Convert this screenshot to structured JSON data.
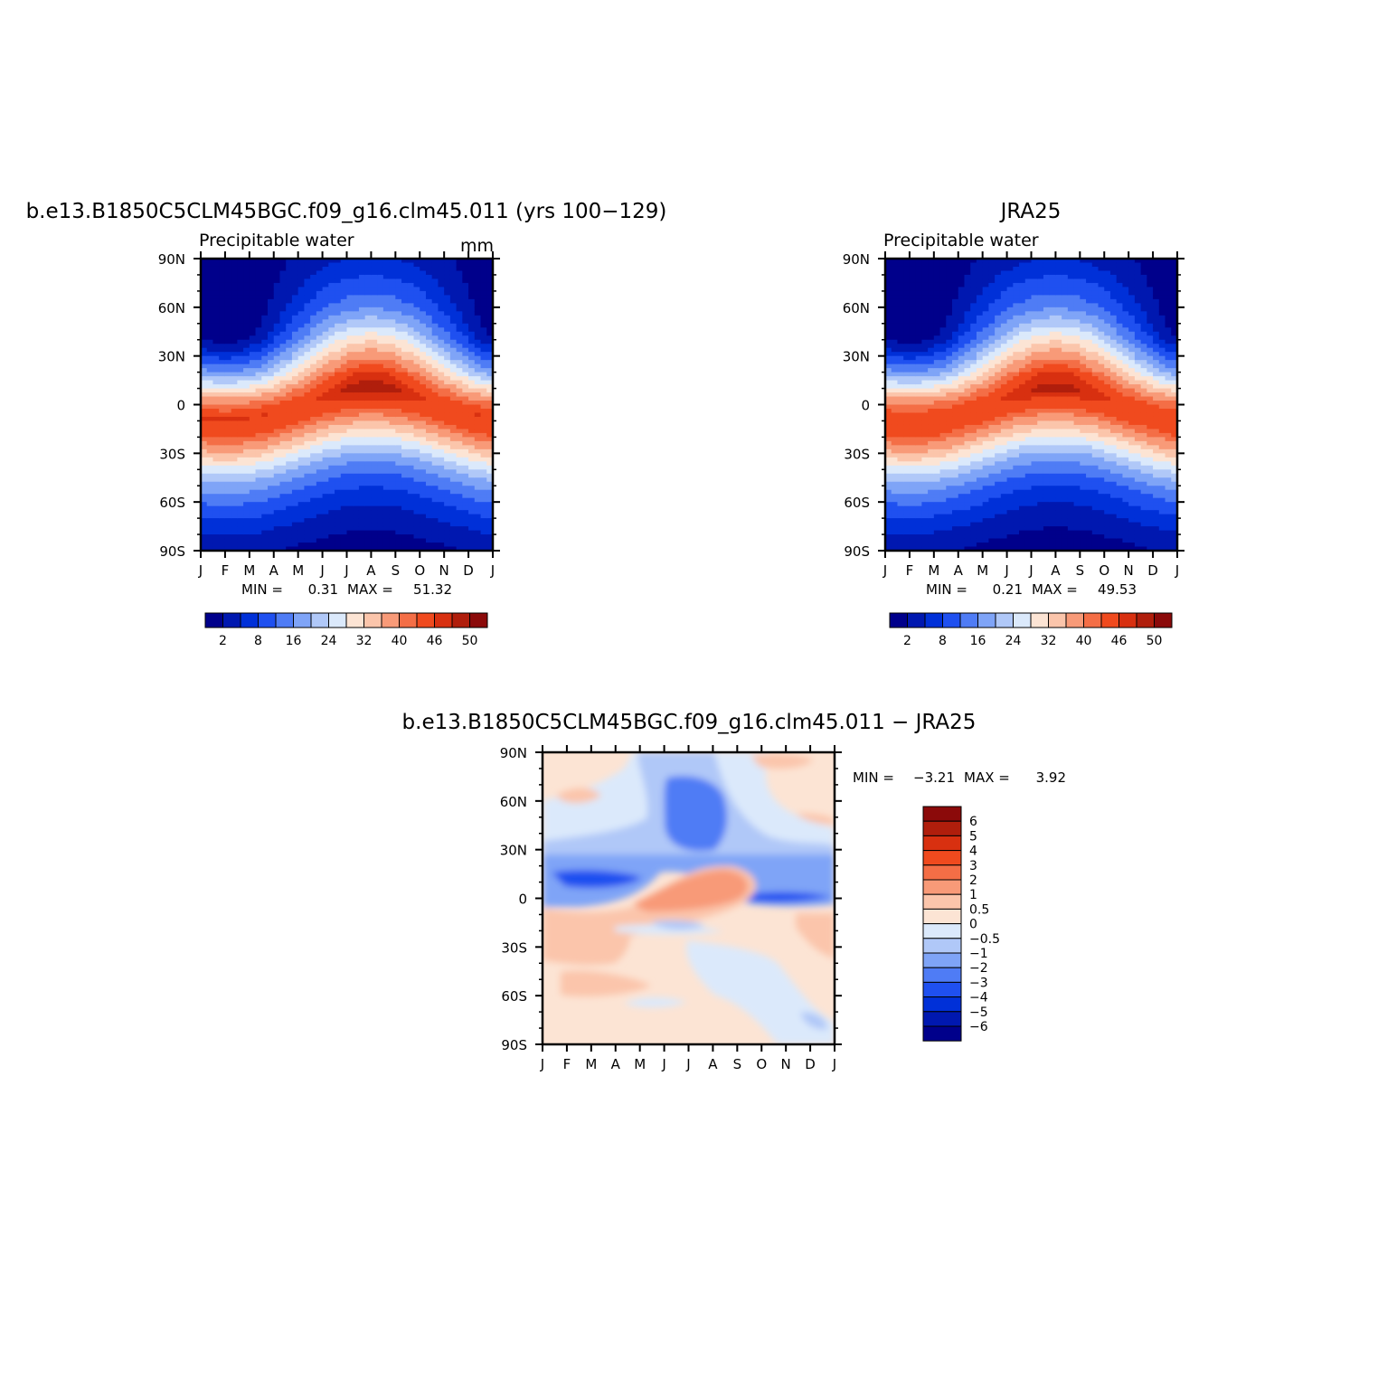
{
  "chart_data": [
    {
      "type": "heatmap",
      "title": "b.e13.B1850C5CLM45BGC.f09_g16.clm45.011 (yrs 100−129)",
      "subtitle": "Precipitable water",
      "units": "mm",
      "x_tick_labels": [
        "J",
        "F",
        "M",
        "A",
        "M",
        "J",
        "J",
        "A",
        "S",
        "O",
        "N",
        "D",
        "J"
      ],
      "y_tick_labels": [
        "90N",
        "60N",
        "30N",
        "0",
        "30S",
        "60S",
        "90S"
      ],
      "ylim": [
        -90,
        90
      ],
      "min_label": "MIN =",
      "min": "0.31",
      "max_label": "MAX =",
      "max": "51.32",
      "colorbar_labels": [
        "2",
        "8",
        "16",
        "24",
        "32",
        "40",
        "46",
        "50"
      ],
      "colors": [
        "#00008b",
        "#0018b0",
        "#0030d8",
        "#1f50f0",
        "#4f7cf5",
        "#7fa4f7",
        "#b0c8f8",
        "#dbe9fb",
        "#fce4d4",
        "#fbc5ab",
        "#f89a78",
        "#f46e46",
        "#f04a1e",
        "#d83010",
        "#b01e0c",
        "#8b0a0a"
      ],
      "profile": {
        "lat": [
          -90,
          -80,
          -70,
          -60,
          -50,
          -40,
          -30,
          -20,
          -10,
          0,
          10,
          20,
          30,
          40,
          50,
          60,
          70,
          80,
          90
        ],
        "annual": [
          1.5,
          3,
          5.5,
          8.5,
          13,
          19,
          27,
          36,
          44,
          46,
          40,
          31,
          22,
          15,
          10,
          7,
          5,
          3.5,
          2.5
        ],
        "seasonal_amp": [
          0,
          0,
          0.5,
          1.5,
          2,
          2,
          2,
          2,
          1,
          0,
          4,
          7,
          9,
          10,
          8.5,
          6,
          4.5,
          3,
          2
        ]
      }
    },
    {
      "type": "heatmap",
      "title": "JRA25",
      "subtitle": "Precipitable water",
      "x_tick_labels": [
        "J",
        "F",
        "M",
        "A",
        "M",
        "J",
        "J",
        "A",
        "S",
        "O",
        "N",
        "D",
        "J"
      ],
      "y_tick_labels": [
        "90N",
        "60N",
        "30N",
        "0",
        "30S",
        "60S",
        "90S"
      ],
      "ylim": [
        -90,
        90
      ],
      "min_label": "MIN =",
      "min": "0.21",
      "max_label": "MAX =",
      "max": "49.53",
      "colorbar_labels": [
        "2",
        "8",
        "16",
        "24",
        "32",
        "40",
        "46",
        "50"
      ],
      "colors": [
        "#00008b",
        "#0018b0",
        "#0030d8",
        "#1f50f0",
        "#4f7cf5",
        "#7fa4f7",
        "#b0c8f8",
        "#dbe9fb",
        "#fce4d4",
        "#fbc5ab",
        "#f89a78",
        "#f46e46",
        "#f04a1e",
        "#d83010",
        "#b01e0c",
        "#8b0a0a"
      ],
      "profile": {
        "lat": [
          -90,
          -80,
          -70,
          -60,
          -50,
          -40,
          -30,
          -20,
          -10,
          0,
          10,
          20,
          30,
          40,
          50,
          60,
          70,
          80,
          90
        ],
        "annual": [
          1.3,
          2.8,
          5.2,
          8.2,
          12.8,
          18.8,
          26.8,
          36,
          43.5,
          45.5,
          40,
          31,
          22,
          15,
          10,
          7,
          5,
          3.3,
          2.3
        ],
        "seasonal_amp": [
          0,
          0,
          0.5,
          1.5,
          2,
          2,
          2,
          2,
          1,
          0,
          4,
          7,
          9,
          10,
          8.5,
          6,
          4.5,
          3,
          2
        ]
      }
    },
    {
      "type": "heatmap",
      "title": "b.e13.B1850C5CLM45BGC.f09_g16.clm45.011 − JRA25",
      "x_tick_labels": [
        "J",
        "F",
        "M",
        "A",
        "M",
        "J",
        "J",
        "A",
        "S",
        "O",
        "N",
        "D",
        "J"
      ],
      "y_tick_labels": [
        "90N",
        "60N",
        "30N",
        "0",
        "30S",
        "60S",
        "90S"
      ],
      "ylim": [
        -90,
        90
      ],
      "min_label": "MIN =",
      "min": "−3.21",
      "max_label": "MAX =",
      "max": "3.92",
      "colorbar_labels": [
        "6",
        "5",
        "4",
        "3",
        "2",
        "1",
        "0.5",
        "0",
        "−0.5",
        "−1",
        "−2",
        "−3",
        "−4",
        "−5",
        "−6"
      ],
      "colors": [
        "#8b0a0a",
        "#b01e0c",
        "#d83010",
        "#f04a1e",
        "#f46e46",
        "#f89a78",
        "#fbc5ab",
        "#fce4d4",
        "#dbe9fb",
        "#b0c8f8",
        "#7fa4f7",
        "#4f7cf5",
        "#1f50f0",
        "#0030d8",
        "#0018b0",
        "#00008b"
      ]
    }
  ]
}
